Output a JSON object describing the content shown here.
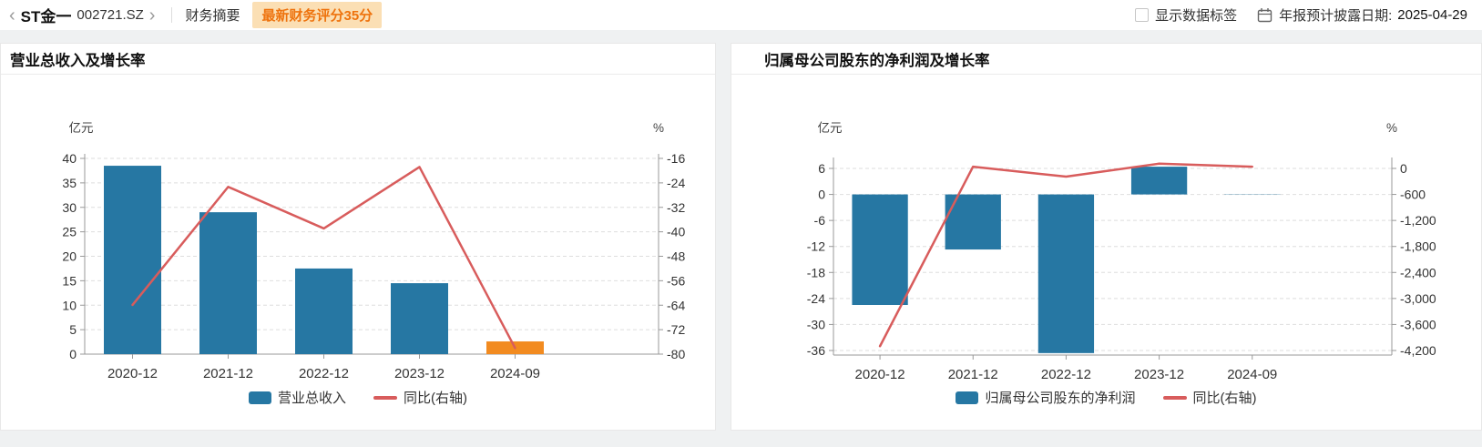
{
  "header": {
    "prev_icon": "‹",
    "next_icon": "›",
    "stock_name": "ST金一",
    "stock_code": "002721.SZ",
    "tab_label": "财务摘要",
    "score_badge": "最新财务评分35分",
    "show_labels_label": "显示数据标签",
    "report_date_label": "年报预计披露日期:",
    "report_date": "2025-04-29"
  },
  "colors": {
    "bar_blue": "#2677a3",
    "bar_orange": "#f28b20",
    "line_red": "#d85c5c",
    "badge_bg": "#fbdfb4",
    "badge_text": "#ee730e",
    "grid": "#dedede",
    "axis": "#999999"
  },
  "chart_data": [
    {
      "type": "bar",
      "title": "营业总收入及增长率",
      "categories": [
        "2020-12",
        "2021-12",
        "2022-12",
        "2023-12",
        "2024-09"
      ],
      "series": [
        {
          "name": "营业总收入",
          "type": "bar",
          "axis": "left",
          "values": [
            38.5,
            29.0,
            17.5,
            14.5,
            2.6
          ],
          "colors": [
            "#2677a3",
            "#2677a3",
            "#2677a3",
            "#2677a3",
            "#f28b20"
          ]
        },
        {
          "name": "同比(右轴)",
          "type": "line",
          "axis": "right",
          "values": [
            -63.9,
            -25.3,
            -38.9,
            -18.8,
            -78.0
          ],
          "color": "#d85c5c"
        }
      ],
      "y_left": {
        "name": "亿元",
        "min": 0,
        "max": 40,
        "ticks": [
          "40",
          "35",
          "30",
          "25",
          "20",
          "15",
          "10",
          "5",
          "0"
        ]
      },
      "y_right": {
        "name": "%",
        "min": -80,
        "max": -16,
        "ticks": [
          "-16",
          "-24",
          "-32",
          "-40",
          "-48",
          "-56",
          "-64",
          "-72",
          "-80"
        ]
      },
      "legend": [
        "营业总收入",
        "同比(右轴)"
      ],
      "legend_position": "bottom",
      "grid": "dashed"
    },
    {
      "type": "bar",
      "title": "归属母公司股东的净利润及增长率",
      "categories": [
        "2020-12",
        "2021-12",
        "2022-12",
        "2023-12",
        "2024-09"
      ],
      "series": [
        {
          "name": "归属母公司股东的净利润",
          "type": "bar",
          "axis": "left",
          "values": [
            -25.5,
            -12.7,
            -36.6,
            6.4,
            0.06
          ],
          "colors": [
            "#2677a3",
            "#2677a3",
            "#2677a3",
            "#2677a3",
            "#2677a3"
          ]
        },
        {
          "name": "同比(右轴)",
          "type": "line",
          "axis": "right",
          "values": [
            -4100,
            40,
            -190,
            110,
            40
          ],
          "color": "#d85c5c"
        }
      ],
      "y_left": {
        "name": "亿元",
        "min": -36,
        "max": 6,
        "ticks": [
          "6",
          "0",
          "-6",
          "-12",
          "-18",
          "-24",
          "-30",
          "-36"
        ]
      },
      "y_right": {
        "name": "%",
        "min": -4200,
        "max": 0,
        "ticks": [
          "0",
          "-600",
          "-1,200",
          "-1,800",
          "-2,400",
          "-3,000",
          "-3,600",
          "-4,200"
        ]
      },
      "legend": [
        "归属母公司股东的净利润",
        "同比(右轴)"
      ],
      "legend_position": "bottom",
      "grid": "dashed"
    }
  ]
}
